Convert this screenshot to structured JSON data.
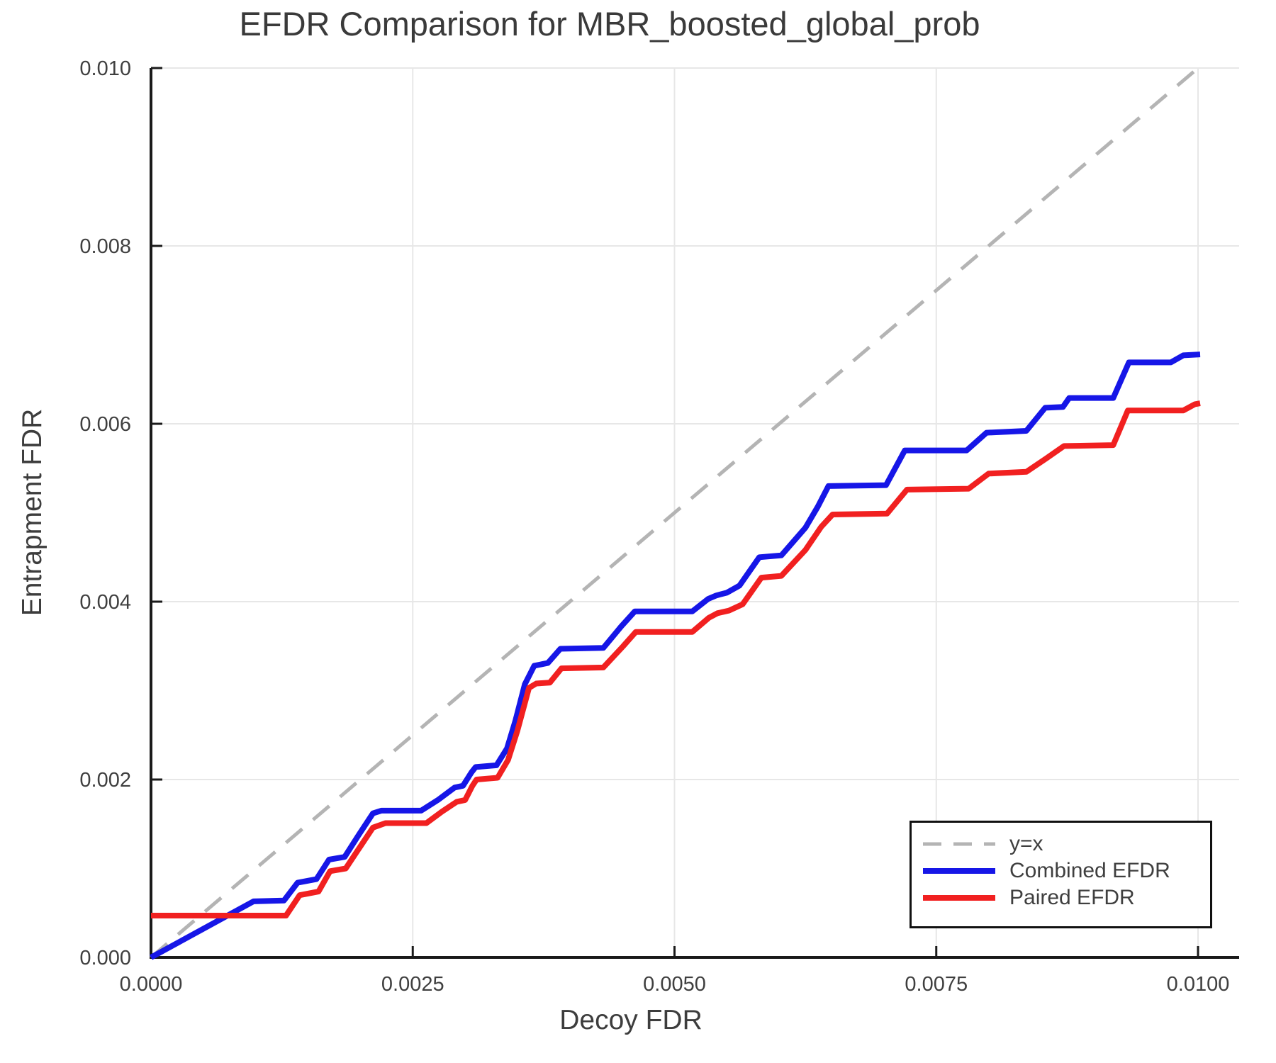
{
  "chart_data": {
    "type": "line",
    "title": "EFDR Comparison for MBR_boosted_global_prob",
    "xlabel": "Decoy FDR",
    "ylabel": "Entrapment FDR",
    "xlim": [
      0,
      0.0104
    ],
    "ylim": [
      0,
      0.01
    ],
    "grid": true,
    "x_ticks": [
      0.0,
      0.0025,
      0.005,
      0.0075,
      0.01
    ],
    "x_tick_labels": [
      "0.0000",
      "0.0025",
      "0.0050",
      "0.0075",
      "0.0100"
    ],
    "y_ticks": [
      0.0,
      0.002,
      0.004,
      0.006,
      0.008,
      0.01
    ],
    "y_tick_labels": [
      "0.000",
      "0.002",
      "0.004",
      "0.006",
      "0.008",
      "0.010"
    ],
    "colors": {
      "identity": "#b4b4b4",
      "combined": "#1616e7",
      "paired": "#f12020",
      "grid": "#e7e7e7",
      "spine": "#1a1a1a",
      "text": "#3f3f3f"
    },
    "legend": {
      "position": "lower right",
      "entries": [
        {
          "label": "y=x",
          "color": "#b4b4b4",
          "dashed": true
        },
        {
          "label": "Combined EFDR",
          "color": "#1616e7",
          "dashed": false
        },
        {
          "label": "Paired EFDR",
          "color": "#f12020",
          "dashed": false
        }
      ]
    },
    "series": [
      {
        "name": "y=x",
        "style": "dashed",
        "color": "#b4b4b4",
        "points": [
          [
            0,
            0
          ],
          [
            0.01,
            0.01
          ]
        ]
      },
      {
        "name": "Combined EFDR",
        "style": "solid",
        "color": "#1616e7",
        "points": [
          [
            0.0,
            0.0
          ],
          [
            0.00098,
            0.00063
          ],
          [
            0.00127,
            0.00064
          ],
          [
            0.0014,
            0.00084
          ],
          [
            0.00158,
            0.00088
          ],
          [
            0.0017,
            0.0011
          ],
          [
            0.00185,
            0.00113
          ],
          [
            0.00198,
            0.00137
          ],
          [
            0.00212,
            0.00162
          ],
          [
            0.0022,
            0.00165
          ],
          [
            0.00258,
            0.00165
          ],
          [
            0.00274,
            0.00177
          ],
          [
            0.0029,
            0.00191
          ],
          [
            0.00298,
            0.00193
          ],
          [
            0.00306,
            0.00208
          ],
          [
            0.0031,
            0.00214
          ],
          [
            0.0033,
            0.00216
          ],
          [
            0.0034,
            0.00235
          ],
          [
            0.00348,
            0.00266
          ],
          [
            0.00357,
            0.00307
          ],
          [
            0.00366,
            0.00328
          ],
          [
            0.00379,
            0.00331
          ],
          [
            0.00391,
            0.00347
          ],
          [
            0.00432,
            0.00348
          ],
          [
            0.00449,
            0.00372
          ],
          [
            0.00462,
            0.00389
          ],
          [
            0.00517,
            0.00389
          ],
          [
            0.00532,
            0.00403
          ],
          [
            0.0054,
            0.00407
          ],
          [
            0.0055,
            0.0041
          ],
          [
            0.00562,
            0.00418
          ],
          [
            0.00581,
            0.0045
          ],
          [
            0.00602,
            0.00452
          ],
          [
            0.00625,
            0.00483
          ],
          [
            0.00637,
            0.00507
          ],
          [
            0.00647,
            0.0053
          ],
          [
            0.00702,
            0.00531
          ],
          [
            0.0072,
            0.0057
          ],
          [
            0.00779,
            0.0057
          ],
          [
            0.00798,
            0.0059
          ],
          [
            0.00836,
            0.00592
          ],
          [
            0.00854,
            0.00618
          ],
          [
            0.00871,
            0.00619
          ],
          [
            0.00877,
            0.00629
          ],
          [
            0.00919,
            0.00629
          ],
          [
            0.00934,
            0.00669
          ],
          [
            0.00974,
            0.00669
          ],
          [
            0.00986,
            0.00677
          ],
          [
            0.01002,
            0.00678
          ]
        ]
      },
      {
        "name": "Paired EFDR",
        "style": "solid",
        "color": "#f12020",
        "points": [
          [
            0.0,
            0.00047
          ],
          [
            0.00129,
            0.00047
          ],
          [
            0.00142,
            0.0007
          ],
          [
            0.0016,
            0.00074
          ],
          [
            0.00171,
            0.00097
          ],
          [
            0.00186,
            0.001
          ],
          [
            0.00199,
            0.00123
          ],
          [
            0.00212,
            0.00146
          ],
          [
            0.00224,
            0.00151
          ],
          [
            0.00263,
            0.00151
          ],
          [
            0.00278,
            0.00164
          ],
          [
            0.00292,
            0.00175
          ],
          [
            0.003,
            0.00177
          ],
          [
            0.00307,
            0.00193
          ],
          [
            0.00311,
            0.002
          ],
          [
            0.00331,
            0.00202
          ],
          [
            0.00341,
            0.00222
          ],
          [
            0.0035,
            0.00255
          ],
          [
            0.00361,
            0.00303
          ],
          [
            0.00368,
            0.00308
          ],
          [
            0.00381,
            0.00309
          ],
          [
            0.00392,
            0.00325
          ],
          [
            0.00432,
            0.00326
          ],
          [
            0.00451,
            0.0035
          ],
          [
            0.00463,
            0.00366
          ],
          [
            0.00517,
            0.00366
          ],
          [
            0.00533,
            0.00382
          ],
          [
            0.00541,
            0.00387
          ],
          [
            0.00552,
            0.0039
          ],
          [
            0.00565,
            0.00397
          ],
          [
            0.00583,
            0.00427
          ],
          [
            0.00602,
            0.00429
          ],
          [
            0.00625,
            0.00458
          ],
          [
            0.0064,
            0.00484
          ],
          [
            0.00651,
            0.00498
          ],
          [
            0.00703,
            0.00499
          ],
          [
            0.00722,
            0.00526
          ],
          [
            0.00781,
            0.00527
          ],
          [
            0.008,
            0.00544
          ],
          [
            0.00836,
            0.00546
          ],
          [
            0.00855,
            0.00561
          ],
          [
            0.00872,
            0.00575
          ],
          [
            0.00919,
            0.00576
          ],
          [
            0.00933,
            0.00615
          ],
          [
            0.00986,
            0.00615
          ],
          [
            0.00997,
            0.00622
          ],
          [
            0.01002,
            0.00623
          ]
        ]
      }
    ]
  }
}
